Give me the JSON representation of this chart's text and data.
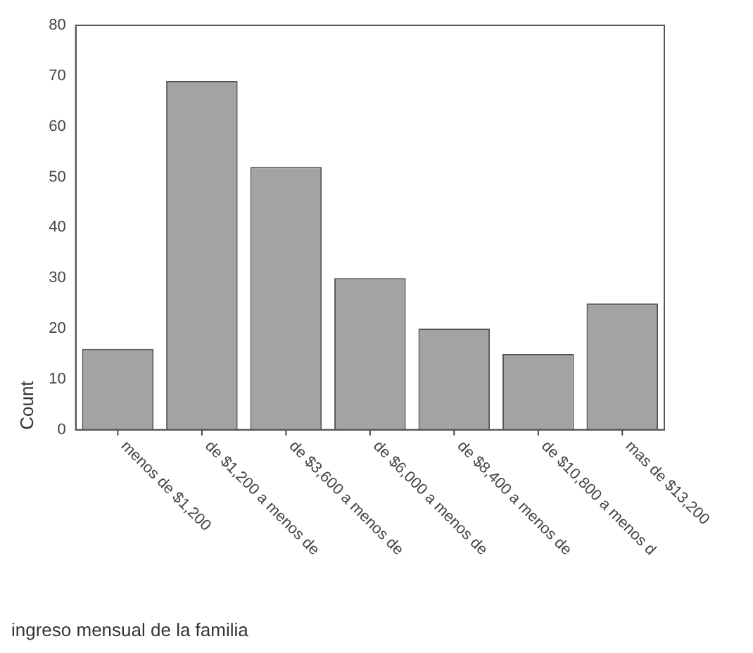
{
  "chart_data": {
    "type": "bar",
    "xlabel": "ingreso mensual de la familia",
    "ylabel": "Count",
    "categories": [
      "menos de $1,200",
      "de $1,200 a menos de",
      "de $3,600 a menos de",
      "de $6,000 a menos de",
      "de $8,400 a menos de",
      "de $10,800 a menos d",
      "mas de $13,200"
    ],
    "values": [
      16,
      69,
      52,
      30,
      20,
      15,
      25
    ],
    "color": "#a3a3a3",
    "ylim": [
      0,
      80
    ],
    "yticks": [
      0,
      10,
      20,
      30,
      40,
      50,
      60,
      70,
      80
    ],
    "grid": false,
    "legend": false
  }
}
